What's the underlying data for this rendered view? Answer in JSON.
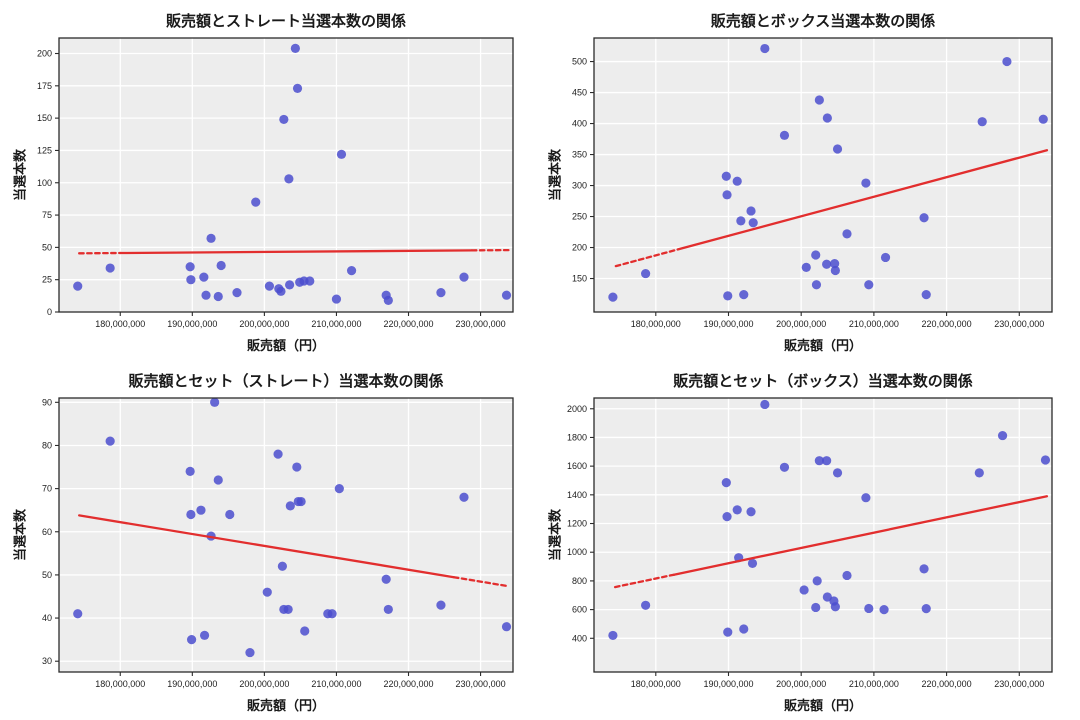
{
  "figure": {
    "background": "#ffffff"
  },
  "style": {
    "plot_bg": "#ededed",
    "grid_color": "#ffffff",
    "spine_color": "#2b2b2b",
    "point_color": "#4b4dce",
    "point_opacity": 0.85,
    "regline_color": "#e22e2e",
    "tick_text_color": "#1d1d1d"
  },
  "chart_data": [
    {
      "type": "scatter",
      "title": "販売額とストレート当選本数の関係",
      "xlabel": "販売額（円）",
      "ylabel": "当選本数",
      "x_unit": "million_yen",
      "xlim": [
        171.5,
        234.5
      ],
      "xticks": [
        180,
        190,
        200,
        210,
        220,
        230
      ],
      "xtick_labels": [
        "180,000,000",
        "190,000,000",
        "200,000,000",
        "210,000,000",
        "220,000,000",
        "230,000,000"
      ],
      "ylim": [
        0,
        212
      ],
      "yticks": [
        0,
        25,
        50,
        75,
        100,
        125,
        150,
        175,
        200
      ],
      "grid": true,
      "legend": "none",
      "points": [
        [
          174.1,
          20
        ],
        [
          178.6,
          34
        ],
        [
          189.7,
          35
        ],
        [
          189.8,
          25
        ],
        [
          191.6,
          27
        ],
        [
          191.9,
          13
        ],
        [
          192.6,
          57
        ],
        [
          193.6,
          12
        ],
        [
          194.0,
          36
        ],
        [
          196.2,
          15
        ],
        [
          198.8,
          85
        ],
        [
          200.7,
          20
        ],
        [
          202.0,
          18
        ],
        [
          202.3,
          16
        ],
        [
          202.7,
          149
        ],
        [
          203.4,
          103
        ],
        [
          203.5,
          21
        ],
        [
          204.3,
          204
        ],
        [
          204.6,
          173
        ],
        [
          204.9,
          23
        ],
        [
          205.5,
          24
        ],
        [
          206.3,
          24
        ],
        [
          210.0,
          10
        ],
        [
          210.7,
          122
        ],
        [
          212.1,
          32
        ],
        [
          216.9,
          13
        ],
        [
          217.2,
          9
        ],
        [
          224.5,
          15
        ],
        [
          227.7,
          27
        ],
        [
          233.6,
          13
        ]
      ],
      "regression": {
        "x1": 174.3,
        "y1": 45.4,
        "x2": 233.9,
        "y2": 47.9,
        "solid_from": 180.0,
        "solid_to": 228.8
      }
    },
    {
      "type": "scatter",
      "title": "販売額とボックス当選本数の関係",
      "xlabel": "販売額（円）",
      "ylabel": "当選本数",
      "x_unit": "million_yen",
      "xlim": [
        171.5,
        234.5
      ],
      "xticks": [
        180,
        190,
        200,
        210,
        220,
        230
      ],
      "xtick_labels": [
        "180,000,000",
        "190,000,000",
        "200,000,000",
        "210,000,000",
        "220,000,000",
        "230,000,000"
      ],
      "ylim": [
        96,
        538
      ],
      "yticks": [
        150,
        200,
        250,
        300,
        350,
        400,
        450,
        500
      ],
      "grid": true,
      "legend": "none",
      "points": [
        [
          174.1,
          120
        ],
        [
          178.6,
          158
        ],
        [
          189.7,
          315
        ],
        [
          189.8,
          285
        ],
        [
          189.9,
          122
        ],
        [
          191.2,
          307
        ],
        [
          191.7,
          243
        ],
        [
          192.1,
          124
        ],
        [
          193.1,
          259
        ],
        [
          193.4,
          240
        ],
        [
          195.0,
          521
        ],
        [
          197.7,
          381
        ],
        [
          200.7,
          168
        ],
        [
          202.0,
          188
        ],
        [
          202.1,
          140
        ],
        [
          202.5,
          438
        ],
        [
          203.5,
          173
        ],
        [
          203.6,
          409
        ],
        [
          204.6,
          174
        ],
        [
          204.7,
          163
        ],
        [
          205.0,
          359
        ],
        [
          206.3,
          222
        ],
        [
          208.9,
          304
        ],
        [
          209.3,
          140
        ],
        [
          211.6,
          184
        ],
        [
          216.9,
          248
        ],
        [
          217.2,
          124
        ],
        [
          224.9,
          403
        ],
        [
          228.3,
          500
        ],
        [
          233.3,
          407
        ]
      ],
      "regression": {
        "x1": 174.5,
        "y1": 170,
        "x2": 233.8,
        "y2": 357,
        "solid_from": 183.0,
        "solid_to": 233.8
      }
    },
    {
      "type": "scatter",
      "title": "販売額とセット（ストレート）当選本数の関係",
      "xlabel": "販売額（円）",
      "ylabel": "当選本数",
      "x_unit": "million_yen",
      "xlim": [
        171.5,
        234.5
      ],
      "xticks": [
        180,
        190,
        200,
        210,
        220,
        230
      ],
      "xtick_labels": [
        "180,000,000",
        "190,000,000",
        "200,000,000",
        "210,000,000",
        "220,000,000",
        "230,000,000"
      ],
      "ylim": [
        27.5,
        91
      ],
      "yticks": [
        30,
        40,
        50,
        60,
        70,
        80,
        90
      ],
      "grid": true,
      "legend": "none",
      "points": [
        [
          174.1,
          41
        ],
        [
          178.6,
          81
        ],
        [
          189.7,
          74
        ],
        [
          189.8,
          64
        ],
        [
          189.9,
          35
        ],
        [
          191.2,
          65
        ],
        [
          191.7,
          36
        ],
        [
          192.6,
          59
        ],
        [
          193.1,
          90
        ],
        [
          193.6,
          72
        ],
        [
          195.2,
          64
        ],
        [
          198.0,
          32
        ],
        [
          200.4,
          46
        ],
        [
          201.9,
          78
        ],
        [
          202.5,
          52
        ],
        [
          202.7,
          42
        ],
        [
          203.3,
          42
        ],
        [
          203.6,
          66
        ],
        [
          204.5,
          75
        ],
        [
          204.7,
          67
        ],
        [
          205.1,
          67
        ],
        [
          205.6,
          37
        ],
        [
          208.8,
          41
        ],
        [
          209.4,
          41
        ],
        [
          210.4,
          70
        ],
        [
          216.9,
          49
        ],
        [
          217.2,
          42
        ],
        [
          224.5,
          43
        ],
        [
          227.7,
          68
        ],
        [
          233.6,
          38
        ]
      ],
      "regression": {
        "x1": 174.3,
        "y1": 63.8,
        "x2": 233.8,
        "y2": 47.4,
        "solid_from": 174.3,
        "solid_to": 226.3
      }
    },
    {
      "type": "scatter",
      "title": "販売額とセット（ボックス）当選本数の関係",
      "xlabel": "販売額（円）",
      "ylabel": "当選本数",
      "x_unit": "million_yen",
      "xlim": [
        171.5,
        234.5
      ],
      "xticks": [
        180,
        190,
        200,
        210,
        220,
        230
      ],
      "xtick_labels": [
        "180,000,000",
        "190,000,000",
        "200,000,000",
        "210,000,000",
        "220,000,000",
        "230,000,000"
      ],
      "ylim": [
        165,
        2075
      ],
      "yticks": [
        400,
        600,
        800,
        1000,
        1200,
        1400,
        1600,
        1800,
        2000
      ],
      "grid": true,
      "legend": "none",
      "points": [
        [
          174.1,
          420
        ],
        [
          178.6,
          630
        ],
        [
          189.7,
          1485
        ],
        [
          189.8,
          1248
        ],
        [
          189.9,
          443
        ],
        [
          191.2,
          1295
        ],
        [
          191.4,
          962
        ],
        [
          192.1,
          465
        ],
        [
          193.1,
          1282
        ],
        [
          193.3,
          922
        ],
        [
          195.0,
          2030
        ],
        [
          197.7,
          1592
        ],
        [
          200.4,
          737
        ],
        [
          202.0,
          615
        ],
        [
          202.2,
          800
        ],
        [
          202.5,
          1638
        ],
        [
          203.5,
          1638
        ],
        [
          203.6,
          688
        ],
        [
          204.5,
          660
        ],
        [
          204.7,
          620
        ],
        [
          205.0,
          1553
        ],
        [
          206.3,
          838
        ],
        [
          208.9,
          1380
        ],
        [
          209.3,
          608
        ],
        [
          211.4,
          600
        ],
        [
          216.9,
          884
        ],
        [
          217.2,
          607
        ],
        [
          224.5,
          1553
        ],
        [
          227.7,
          1813
        ],
        [
          233.6,
          1643
        ]
      ],
      "regression": {
        "x1": 174.4,
        "y1": 757,
        "x2": 233.8,
        "y2": 1390,
        "solid_from": 182.5,
        "solid_to": 233.8
      }
    }
  ]
}
